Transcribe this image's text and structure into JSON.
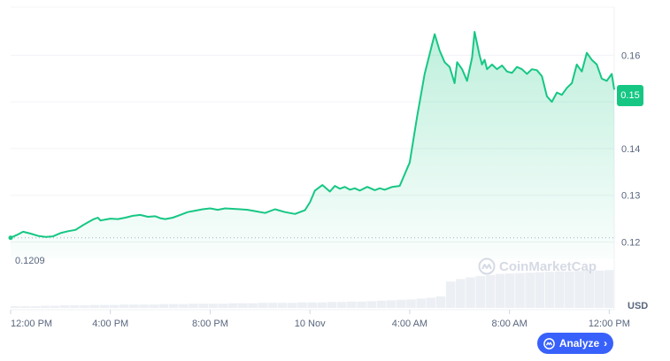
{
  "chart_data": {
    "type": "area",
    "currency_label": "USD",
    "y_ticks": [
      "0.16",
      "0.15",
      "0.14",
      "0.13",
      "0.12"
    ],
    "y_tick_values": [
      0.16,
      0.15,
      0.14,
      0.13,
      0.12
    ],
    "ylim": [
      0.1163,
      0.1703
    ],
    "x_ticks": [
      "12:00 PM",
      "4:00 PM",
      "8:00 PM",
      "10 Nov",
      "4:00 AM",
      "8:00 AM",
      "12:00 PM"
    ],
    "x_tick_hours": [
      0,
      4,
      8,
      12,
      16,
      20,
      24
    ],
    "xlim_hours": [
      0,
      24.2
    ],
    "start_price_label": "0.1209",
    "start_price": 0.1209,
    "current_price_label": "0.15",
    "current_price": 0.1526,
    "series": [
      {
        "hours": [
          0,
          0.25,
          0.5,
          0.8,
          1.1,
          1.4,
          1.7,
          2.0,
          2.3,
          2.6,
          2.9,
          3.1,
          3.3,
          3.5,
          3.6,
          3.8,
          4.0,
          4.3,
          4.6,
          4.9,
          5.2,
          5.5,
          5.8,
          6.0,
          6.2,
          6.5,
          6.8,
          7.1,
          7.4,
          7.7,
          8.0,
          8.3,
          8.6,
          8.9,
          9.2,
          9.5,
          9.8,
          10.2,
          10.6,
          11.0,
          11.4,
          11.8,
          12.0,
          12.2,
          12.5,
          12.8,
          13.0,
          13.2,
          13.4,
          13.6,
          13.8,
          14.0,
          14.3,
          14.6,
          14.8,
          15.0,
          15.3,
          15.6,
          16.0,
          16.3,
          16.6,
          17.0,
          17.2,
          17.4,
          17.6,
          17.8,
          17.9,
          18.1,
          18.3,
          18.5,
          18.6,
          18.8,
          18.9,
          19.0,
          19.1,
          19.3,
          19.5,
          19.7,
          19.9,
          20.1,
          20.3,
          20.5,
          20.7,
          20.9,
          21.1,
          21.3,
          21.5,
          21.7,
          21.9,
          22.1,
          22.3,
          22.5,
          22.7,
          22.9,
          23.1,
          23.3,
          23.5,
          23.7,
          23.9,
          24.1,
          24.2
        ],
        "values": [
          0.1209,
          0.1215,
          0.1222,
          0.1218,
          0.1213,
          0.1211,
          0.1212,
          0.1219,
          0.1223,
          0.1226,
          0.1236,
          0.1242,
          0.1248,
          0.1252,
          0.1246,
          0.1248,
          0.125,
          0.1249,
          0.1252,
          0.1256,
          0.1258,
          0.1254,
          0.1255,
          0.1251,
          0.1249,
          0.1252,
          0.1258,
          0.1264,
          0.1267,
          0.127,
          0.1272,
          0.1269,
          0.1272,
          0.1271,
          0.127,
          0.1269,
          0.1266,
          0.1262,
          0.127,
          0.1264,
          0.126,
          0.1268,
          0.1285,
          0.131,
          0.1322,
          0.1308,
          0.132,
          0.1314,
          0.1318,
          0.1312,
          0.1315,
          0.131,
          0.1318,
          0.1311,
          0.1315,
          0.1312,
          0.1318,
          0.132,
          0.137,
          0.147,
          0.156,
          0.1645,
          0.161,
          0.1585,
          0.1575,
          0.154,
          0.1585,
          0.157,
          0.1545,
          0.1595,
          0.165,
          0.16,
          0.158,
          0.159,
          0.157,
          0.158,
          0.157,
          0.1578,
          0.1565,
          0.1562,
          0.1575,
          0.157,
          0.156,
          0.157,
          0.1568,
          0.1555,
          0.1512,
          0.15,
          0.152,
          0.1515,
          0.153,
          0.154,
          0.158,
          0.1565,
          0.1605,
          0.159,
          0.158,
          0.155,
          0.1545,
          0.156,
          0.1526
        ]
      }
    ],
    "volume_fraction": [
      0.04,
      0.04,
      0.04,
      0.05,
      0.05,
      0.06,
      0.06,
      0.06,
      0.07,
      0.07,
      0.07,
      0.08,
      0.08,
      0.08,
      0.08,
      0.09,
      0.09,
      0.09,
      0.1,
      0.1,
      0.1,
      0.1,
      0.11,
      0.11,
      0.11,
      0.12,
      0.12,
      0.12,
      0.12,
      0.13,
      0.13,
      0.13,
      0.14,
      0.14,
      0.15,
      0.15,
      0.16,
      0.17,
      0.18,
      0.19,
      0.2,
      0.22,
      0.24,
      0.27,
      0.62,
      0.68,
      0.72,
      0.75,
      0.77,
      0.8,
      0.81,
      0.82,
      0.83,
      0.84,
      0.85,
      0.86,
      0.86,
      0.87,
      0.88,
      0.88,
      0.89
    ],
    "grid": true,
    "line_color": "#16c784",
    "watermark": "CoinMarketCap"
  },
  "ui": {
    "analyze_label": "Analyze",
    "accent": "#3861fb"
  }
}
